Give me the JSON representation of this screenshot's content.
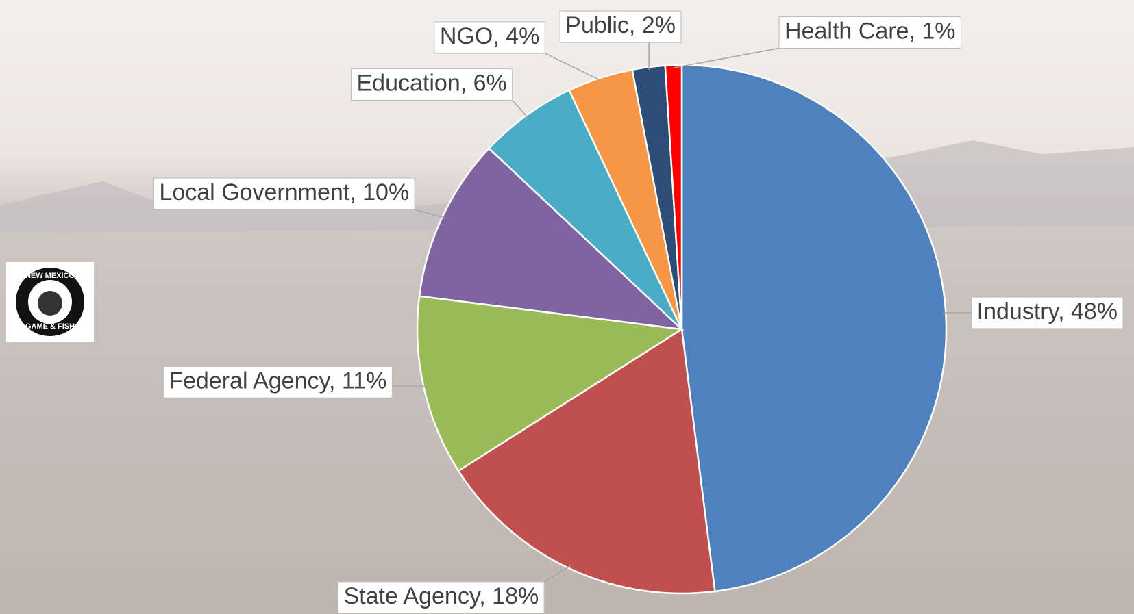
{
  "chart_data": {
    "type": "pie",
    "values": [
      48,
      18,
      11,
      10,
      6,
      4,
      2,
      1
    ],
    "value_labels": [
      "Industry, 48%",
      "State Agency, 18%",
      "Federal Agency, 11%",
      "Local Government, 10%",
      "Education, 6%",
      "NGO, 4%",
      "Public, 2%",
      "Health Care, 1%"
    ],
    "colors": [
      "#4f81bd",
      "#c0504d",
      "#9bbb59",
      "#8064a2",
      "#4bacc6",
      "#f79646",
      "#2c4d75",
      "#ff0000"
    ]
  },
  "logo": {
    "top": "NEW MEXICO",
    "bottom": "GAME & FISH"
  }
}
